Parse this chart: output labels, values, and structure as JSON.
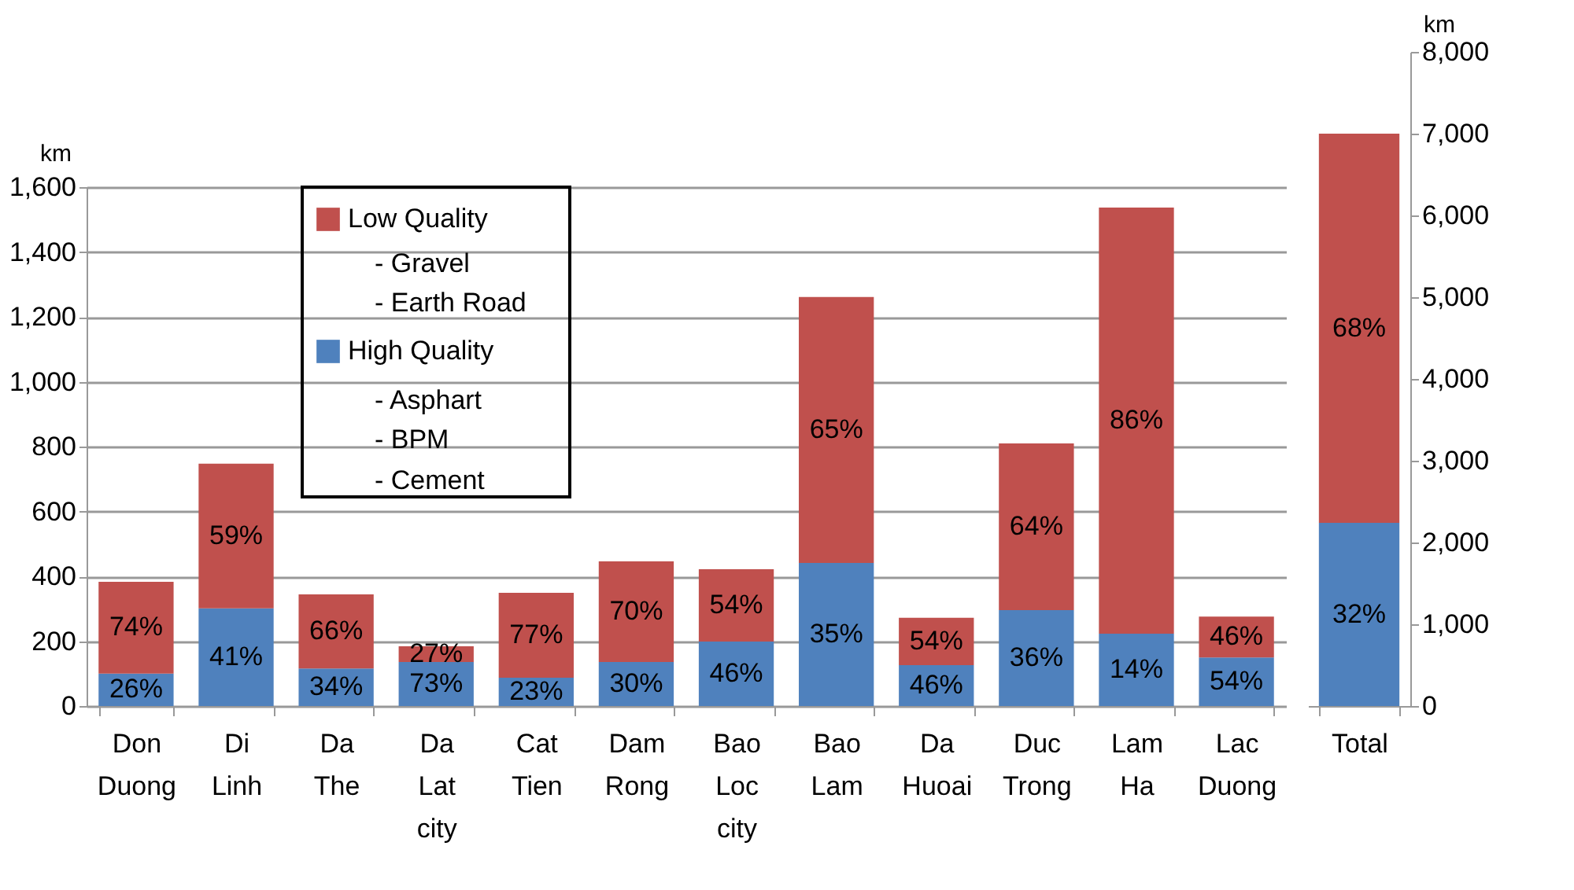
{
  "chart_data": [
    {
      "type": "bar",
      "stacked": true,
      "ylabel": "km",
      "ylim": [
        0,
        1600
      ],
      "yticks": [
        {
          "value": 0,
          "label": "0"
        },
        {
          "value": 200,
          "label": "200"
        },
        {
          "value": 400,
          "label": "400"
        },
        {
          "value": 600,
          "label": "600"
        },
        {
          "value": 800,
          "label": "800"
        },
        {
          "value": 1000,
          "label": "1,000"
        },
        {
          "value": 1200,
          "label": "1,200"
        },
        {
          "value": 1400,
          "label": "1,400"
        },
        {
          "value": 1600,
          "label": "1,600"
        }
      ],
      "grid": "y",
      "legend": "top left",
      "categories": [
        "Don Duong",
        "Di Linh",
        "Da The",
        "Da Lat city",
        "Cat Tien",
        "Dam Rong",
        "Bao Loc city",
        "Bao Lam",
        "Da Huoai",
        "Duc Trong",
        "Lam Ha",
        "Lac Duong"
      ],
      "series": [
        {
          "name": "High Quality",
          "color": "#4f81bd",
          "values": [
            100,
            301,
            116,
            136,
            87,
            136,
            199,
            441,
            126,
            296,
            223,
            150
          ]
        },
        {
          "name": "Low Quality",
          "color": "#c0504d",
          "values": [
            283,
            446,
            228,
            48,
            262,
            310,
            223,
            820,
            146,
            514,
            1314,
            126
          ]
        }
      ],
      "annotations": [
        "- Gravel",
        "- Earth Road",
        "- Asphart",
        "- BPM",
        "- Cement",
        "26%",
        "41%",
        "34%",
        "73%",
        "23%",
        "30%",
        "46%",
        "35%",
        "46%",
        "36%",
        "14%",
        "54%",
        "74%",
        "59%",
        "66%",
        "27%",
        "77%",
        "70%",
        "54%",
        "65%",
        "54%",
        "64%",
        "86%",
        "46%"
      ]
    },
    {
      "type": "bar",
      "stacked": true,
      "y2label": "km",
      "y2lim": [
        0,
        8000
      ],
      "y2ticks": [
        {
          "value": 0,
          "label": "0"
        },
        {
          "value": 1000,
          "label": "1,000"
        },
        {
          "value": 2000,
          "label": "2,000"
        },
        {
          "value": 3000,
          "label": "3,000"
        },
        {
          "value": 4000,
          "label": "4,000"
        },
        {
          "value": 5000,
          "label": "5,000"
        },
        {
          "value": 6000,
          "label": "6,000"
        },
        {
          "value": 7000,
          "label": "7,000"
        },
        {
          "value": 8000,
          "label": "8,000"
        }
      ],
      "categories": [
        "Total"
      ],
      "series": [
        {
          "color": "#4f81bd",
          "axis": "y2",
          "values": [
            2240
          ]
        },
        {
          "color": "#c0504d",
          "axis": "y2",
          "values": [
            4760
          ]
        }
      ],
      "annotations": [
        "32%",
        "68%"
      ]
    }
  ]
}
